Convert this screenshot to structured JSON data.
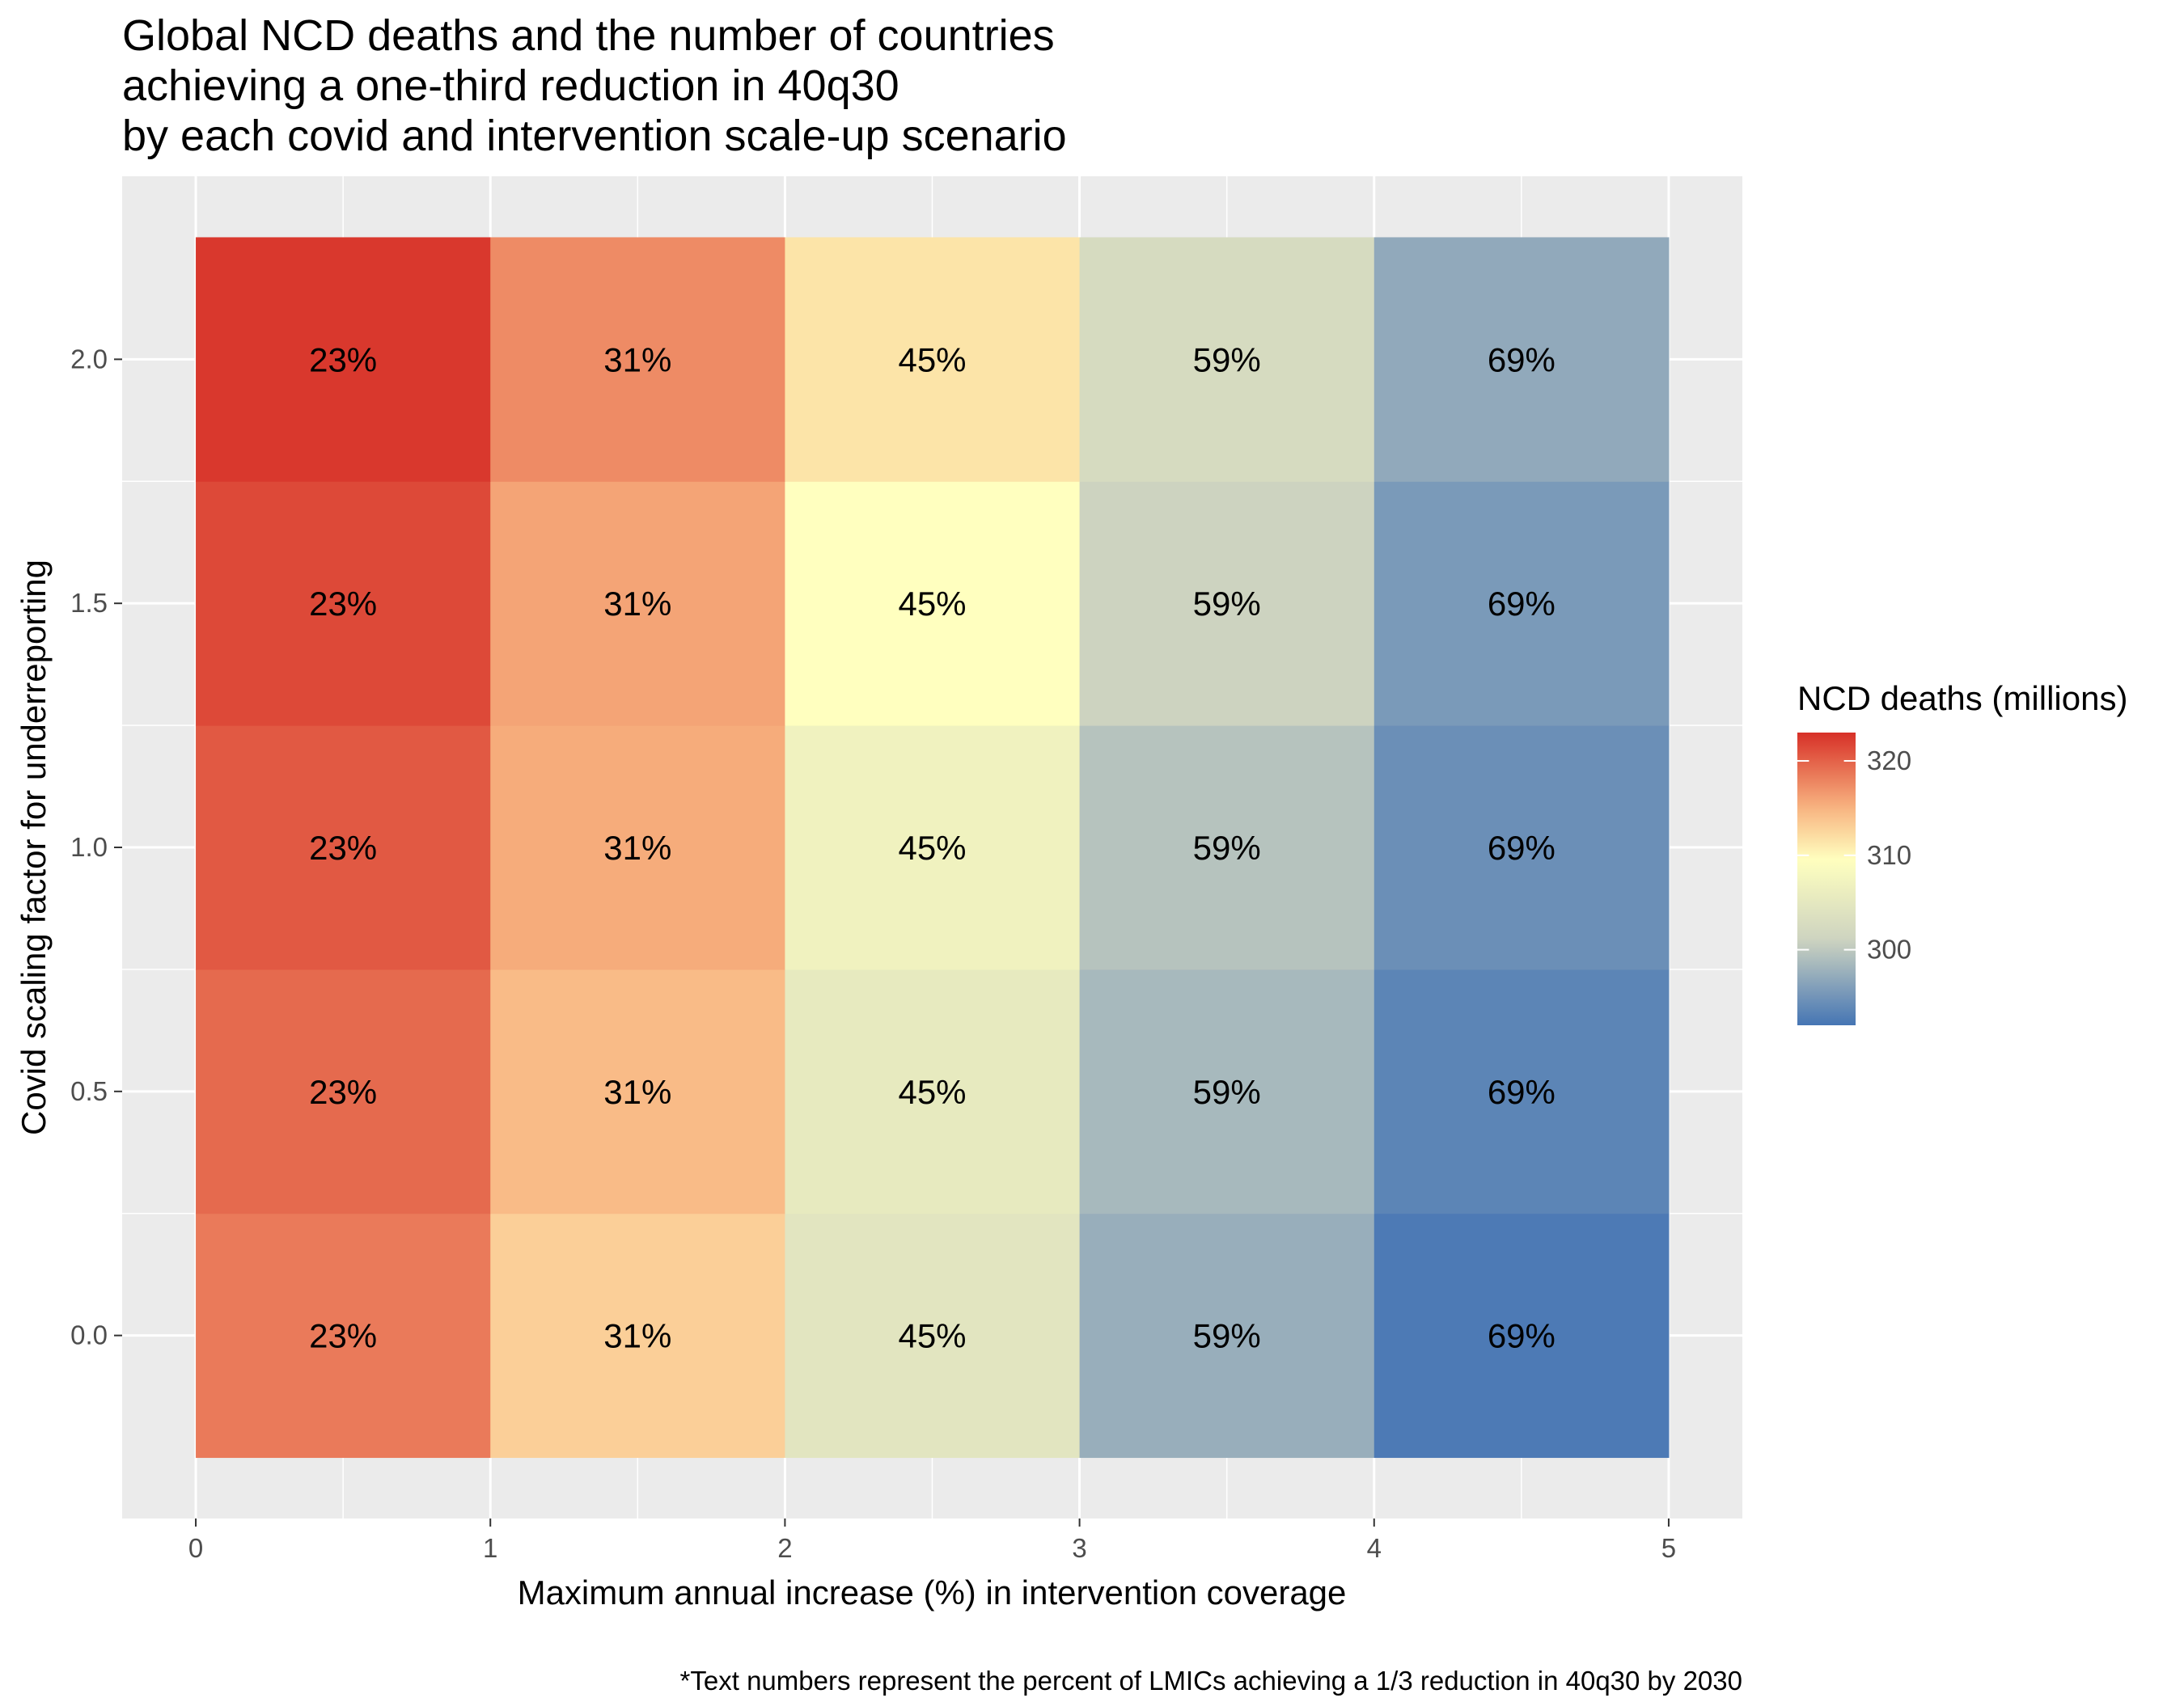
{
  "chart_data": {
    "type": "heatmap",
    "title": [
      "Global NCD deaths and the number of countries",
      "achieving a one-third reduction in 40q30",
      "by each covid and intervention scale-up scenario"
    ],
    "xlabel": "Maximum annual increase (%) in intervention coverage",
    "ylabel": "Covid scaling factor for underreporting",
    "caption": "*Text numbers represent the percent of LMICs achieving a 1/3 reduction in 40q30 by 2030",
    "x_ticks": [
      "0",
      "1",
      "2",
      "3",
      "4",
      "5"
    ],
    "y_ticks": [
      "0.0",
      "0.5",
      "1.0",
      "1.5",
      "2.0"
    ],
    "xlim": [
      -0.25,
      5.25
    ],
    "ylim": [
      -0.375,
      2.375
    ],
    "x_bins": [
      [
        0,
        1
      ],
      [
        1,
        2
      ],
      [
        2,
        3
      ],
      [
        3,
        4
      ],
      [
        4,
        5
      ]
    ],
    "y_values": [
      0.0,
      0.5,
      1.0,
      1.5,
      2.0
    ],
    "y_tile_height": 0.5,
    "values": [
      [
        318.5,
        313.0,
        304.5,
        297.5,
        292.5
      ],
      [
        319.5,
        314.5,
        305.5,
        298.5,
        293.5
      ],
      [
        320.5,
        315.5,
        307.0,
        299.5,
        294.5
      ],
      [
        321.5,
        316.0,
        309.5,
        301.0,
        295.5
      ],
      [
        322.5,
        317.5,
        311.5,
        302.5,
        297.0
      ]
    ],
    "labels": [
      [
        "23%",
        "31%",
        "45%",
        "59%",
        "69%"
      ],
      [
        "23%",
        "31%",
        "45%",
        "59%",
        "69%"
      ],
      [
        "23%",
        "31%",
        "45%",
        "59%",
        "69%"
      ],
      [
        "23%",
        "31%",
        "45%",
        "59%",
        "69%"
      ],
      [
        "23%",
        "31%",
        "45%",
        "59%",
        "69%"
      ]
    ],
    "legend": {
      "title": "NCD deaths (millions)",
      "position": "right",
      "ticks": [
        "320",
        "310",
        "300"
      ],
      "tick_values": [
        320,
        310,
        300
      ],
      "range": [
        292,
        323
      ]
    },
    "colors": {
      "low": "#4575b4",
      "mid": "#ffffbf",
      "high": "#d73027",
      "scale_stops": [
        {
          "value": 292,
          "color": "#4575b4"
        },
        {
          "value": 301,
          "color": "#cdd3c0"
        },
        {
          "value": 309.5,
          "color": "#ffffbf"
        },
        {
          "value": 315,
          "color": "#f8b481"
        },
        {
          "value": 323,
          "color": "#d73027"
        }
      ],
      "panel_background": "#ebebeb",
      "grid": "#ffffff"
    },
    "grid": true
  }
}
